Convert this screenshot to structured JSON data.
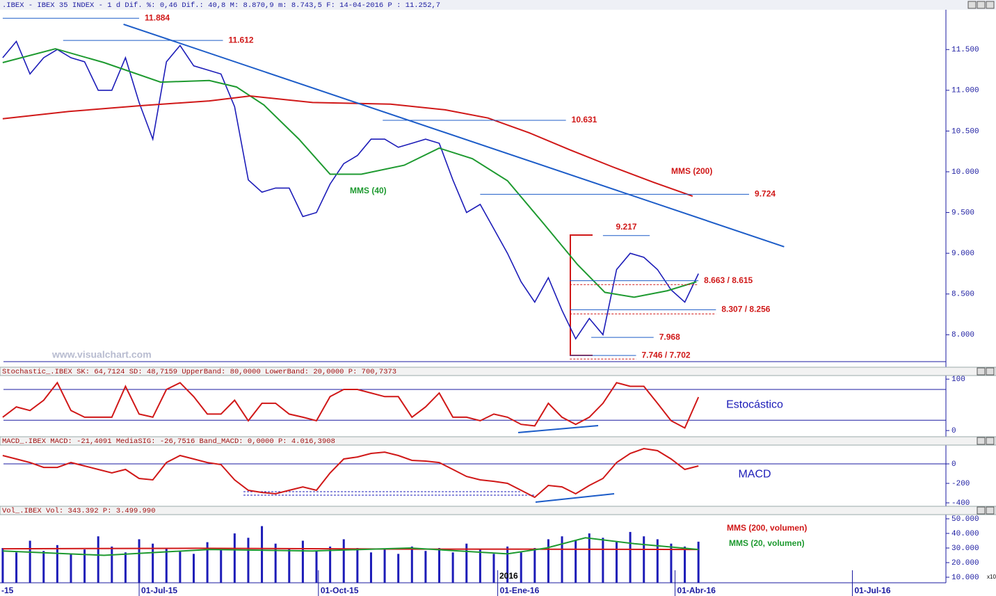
{
  "header": ".IBEX - IBEX 35 INDEX -  1 d Dif. %: 0,46 Dif.: 40,8 M: 8.870,9 m: 8.743,5 F: 14-04-2016 P : 11.252,7",
  "watermark": "www.visualchart.com",
  "chart_data": [
    {
      "type": "line",
      "xlim": [
        19.6,
        505
      ],
      "ylim": [
        7670,
        11980
      ],
      "yticks": [
        {
          "value": 8000,
          "label": "8.000"
        },
        {
          "value": 8500,
          "label": "8.500"
        },
        {
          "value": 9000,
          "label": "9.000"
        },
        {
          "value": 9500,
          "label": "9.500"
        },
        {
          "value": 10000,
          "label": "10.000"
        },
        {
          "value": 10500,
          "label": "10.500"
        },
        {
          "value": 11000,
          "label": "11.000"
        },
        {
          "value": 11500,
          "label": "11.500"
        }
      ],
      "x": [
        21,
        28,
        35,
        42,
        49,
        56,
        63,
        70,
        77,
        84,
        91,
        98,
        105,
        112,
        119,
        126,
        133,
        140,
        147,
        154,
        161,
        168,
        175,
        182,
        189,
        196,
        203,
        210,
        217,
        224,
        231,
        238,
        245,
        252,
        259,
        266,
        273,
        280,
        287,
        294,
        301,
        308,
        315,
        322,
        329,
        336,
        343,
        350,
        357,
        364,
        371,
        378
      ],
      "series": [
        {
          "color": "#1c1cb8",
          "values": [
            11400,
            11600,
            11200,
            11400,
            11500,
            11400,
            11350,
            11000,
            11000,
            11400,
            10850,
            10400,
            11350,
            11550,
            11300,
            11250,
            11200,
            10800,
            9900,
            9750,
            9800,
            9800,
            9450,
            9500,
            9850,
            10100,
            10200,
            10400,
            10400,
            10300,
            10350,
            10400,
            10350,
            9900,
            9500,
            9600,
            9300,
            9000,
            8650,
            8400,
            8700,
            8300,
            7950,
            8200,
            8000,
            8800,
            9000,
            8950,
            8800,
            8550,
            8400,
            8750
          ]
        },
        {
          "name": "MMS (40)",
          "color": "#1e9a30",
          "x": [
            21,
            48,
            73,
            102,
            127,
            141,
            155,
            173,
            189,
            205,
            227,
            245,
            262,
            280,
            298,
            316,
            330,
            345,
            362,
            377
          ],
          "values": [
            11340,
            11510,
            11340,
            11100,
            11120,
            11040,
            10820,
            10400,
            9970,
            9970,
            10080,
            10290,
            10160,
            9890,
            9380,
            8860,
            8520,
            8460,
            8540,
            8650
          ]
        },
        {
          "name": "MMS (200)",
          "color": "#d01818",
          "x": [
            21,
            55,
            91,
            127,
            148,
            180,
            220,
            248,
            270,
            291,
            312,
            334,
            355,
            375
          ],
          "values": [
            10650,
            10740,
            10810,
            10870,
            10930,
            10850,
            10830,
            10760,
            10660,
            10480,
            10270,
            10060,
            9870,
            9700
          ]
        }
      ],
      "trendline": {
        "x": [
          83,
          422
        ],
        "values": [
          11810,
          9080
        ]
      },
      "levels": [
        {
          "label": "11.884",
          "values": [
            11884
          ],
          "x": [
            21,
            91
          ]
        },
        {
          "label": "11.612",
          "values": [
            11612
          ],
          "x": [
            52,
            134
          ]
        },
        {
          "label": "10.631",
          "values": [
            10631
          ],
          "x": [
            216,
            310
          ]
        },
        {
          "label": "9.724",
          "values": [
            9724
          ],
          "x": [
            266,
            404
          ]
        },
        {
          "label": "9.217",
          "values": [
            9217
          ],
          "x": [
            329,
            353
          ]
        },
        {
          "label": "8.663 / 8.615",
          "values": [
            8663,
            8615
          ],
          "x": [
            312,
            378
          ]
        },
        {
          "label": "8.307 / 8.256",
          "values": [
            8307,
            8256
          ],
          "x": [
            312,
            387
          ]
        },
        {
          "label": "7.968",
          "values": [
            7968
          ],
          "x": [
            323,
            355
          ]
        },
        {
          "label": "7.746 / 7.702",
          "values": [
            7746,
            7702
          ],
          "x": [
            312,
            346
          ]
        }
      ]
    },
    {
      "type": "line",
      "header": "Stochastic_.IBEX SK: 64,7124 SD: 48,7159 UpperBand: 80,0000 LowerBand: 20,0000 P: 700,7373",
      "label": "Estocástico",
      "xlim": [
        19.6,
        505
      ],
      "ylim": [
        -8,
        107
      ],
      "yticks": [
        0,
        100
      ],
      "bands": [
        80,
        20
      ],
      "x": [
        21,
        28,
        35,
        42,
        49,
        56,
        63,
        70,
        77,
        84,
        91,
        98,
        105,
        112,
        119,
        126,
        133,
        140,
        147,
        154,
        161,
        168,
        175,
        182,
        189,
        196,
        203,
        210,
        217,
        224,
        231,
        238,
        245,
        252,
        259,
        266,
        273,
        280,
        287,
        294,
        301,
        308,
        315,
        322,
        329,
        336,
        343,
        350,
        357,
        364,
        371,
        378
      ],
      "series": [
        {
          "color": "#d01818",
          "values": [
            26,
            46,
            39,
            59,
            93,
            39,
            26,
            26,
            26,
            86,
            32,
            26,
            80,
            93,
            66,
            32,
            32,
            59,
            19,
            53,
            53,
            32,
            26,
            19,
            66,
            80,
            80,
            73,
            66,
            66,
            26,
            46,
            73,
            26,
            26,
            19,
            32,
            26,
            12,
            9,
            53,
            26,
            12,
            26,
            53,
            93,
            86,
            86,
            53,
            19,
            5,
            65
          ]
        }
      ]
    },
    {
      "type": "line",
      "header": "MACD_.IBEX MACD: -21,4091 MediaSIG: -26,7516 Band_MACD: 0,0000 P: 4.016,3908",
      "label": "MACD",
      "xlim": [
        19.6,
        505
      ],
      "ylim": [
        -414,
        193
      ],
      "yticks": [
        0,
        -200,
        -400
      ],
      "bands": [
        0
      ],
      "x": [
        21,
        28,
        35,
        42,
        49,
        56,
        63,
        70,
        77,
        84,
        91,
        98,
        105,
        112,
        119,
        126,
        133,
        140,
        147,
        154,
        161,
        168,
        175,
        182,
        189,
        196,
        203,
        210,
        217,
        224,
        231,
        238,
        245,
        252,
        259,
        266,
        273,
        280,
        287,
        294,
        301,
        308,
        315,
        322,
        329,
        336,
        343,
        350,
        357,
        364,
        371,
        378
      ],
      "series": [
        {
          "color": "#d01818",
          "values": [
            86,
            50,
            14,
            -36,
            -36,
            14,
            -21,
            -57,
            -93,
            -57,
            -150,
            -164,
            14,
            86,
            50,
            14,
            -7,
            -164,
            -271,
            -293,
            -307,
            -271,
            -236,
            -271,
            -93,
            50,
            71,
            107,
            121,
            86,
            36,
            29,
            14,
            -57,
            -129,
            -164,
            -179,
            -200,
            -271,
            -343,
            -221,
            -236,
            -307,
            -221,
            -150,
            14,
            107,
            157,
            136,
            50,
            -57,
            -21
          ]
        }
      ]
    },
    {
      "type": "bar",
      "header": "Vol_.IBEX Vol: 343.392 P: 3.499.990",
      "unit_label": "x10",
      "annotation": "2016",
      "color": "#1c1cb8",
      "xlim": [
        19.6,
        505
      ],
      "ylim": [
        6190,
        52860
      ],
      "yticks": [
        {
          "value": 10000,
          "label": "10.000"
        },
        {
          "value": 20000,
          "label": "20.000"
        },
        {
          "value": 30000,
          "label": "30.000"
        },
        {
          "value": 40000,
          "label": "40.000"
        },
        {
          "value": 50000,
          "label": "50.000"
        }
      ],
      "xticks": [
        {
          "value": 0,
          "label": "-15"
        },
        {
          "value": 91,
          "label": "01-Jul-15"
        },
        {
          "value": 183,
          "label": "01-Oct-15"
        },
        {
          "value": 275,
          "label": "01-Ene-16"
        },
        {
          "value": 366,
          "label": "01-Abr-16"
        },
        {
          "value": 457,
          "label": "01-Jul-16"
        }
      ],
      "x": [
        21,
        28,
        35,
        42,
        49,
        56,
        63,
        70,
        77,
        84,
        91,
        98,
        105,
        112,
        119,
        126,
        133,
        140,
        147,
        154,
        161,
        168,
        175,
        182,
        189,
        196,
        203,
        210,
        217,
        224,
        231,
        238,
        245,
        252,
        259,
        266,
        273,
        280,
        287,
        294,
        301,
        308,
        315,
        322,
        329,
        336,
        343,
        350,
        357,
        364,
        371,
        378
      ],
      "values": [
        30000,
        27000,
        35000,
        28000,
        32000,
        26000,
        29000,
        38000,
        31000,
        27000,
        36000,
        33000,
        30000,
        28000,
        26000,
        34000,
        29000,
        40000,
        37000,
        45000,
        33000,
        30000,
        35000,
        28000,
        31000,
        36000,
        30000,
        27000,
        29000,
        26000,
        31000,
        28000,
        30000,
        27000,
        33000,
        29000,
        26000,
        31000,
        27000,
        30000,
        36000,
        38000,
        35000,
        40000,
        37000,
        34000,
        41000,
        38000,
        36000,
        33000,
        31000,
        34339
      ],
      "series": [
        {
          "name": "MMS (200, volumen)",
          "color": "#d01818",
          "x": [
            21,
            120,
            220,
            300,
            378
          ],
          "values": [
            29500,
            29800,
            29300,
            29200,
            29000
          ]
        },
        {
          "name": "MMS (20, volumen)",
          "color": "#1e9a30",
          "x": [
            21,
            73,
            127,
            180,
            230,
            280,
            300,
            320,
            345,
            378
          ],
          "values": [
            28000,
            25000,
            29000,
            28000,
            30000,
            26000,
            30000,
            37000,
            33000,
            29000
          ]
        }
      ]
    }
  ]
}
